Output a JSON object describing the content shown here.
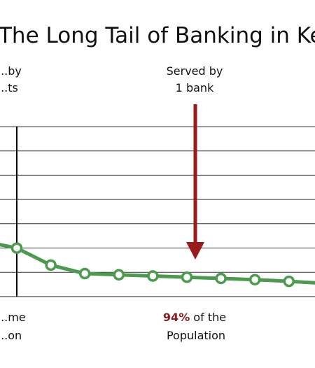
{
  "chart_data": {
    "type": "line",
    "title": "The Long Tail of Banking in Kenya",
    "xlabel": "",
    "ylabel": "",
    "grid": true,
    "series": [
      {
        "x": [
          0,
          1,
          2,
          3,
          4,
          5,
          6,
          7,
          8,
          9,
          10
        ],
        "values": [
          2.0,
          1.3,
          0.95,
          0.9,
          0.85,
          0.8,
          0.75,
          0.7,
          0.63,
          0.55,
          0.45
        ]
      }
    ],
    "colors": {
      "line": "#4b9a4e",
      "arrow": "#9a1b1b",
      "grid": "#333333"
    },
    "annotations": {
      "left_top": [
        "...by",
        "...ts"
      ],
      "left_bottom": [
        "...me",
        "...on"
      ],
      "served_line1": "Served by",
      "served_line2": "1 bank",
      "pct": "94%",
      "pct_suffix": " of the",
      "population": "Population"
    }
  }
}
